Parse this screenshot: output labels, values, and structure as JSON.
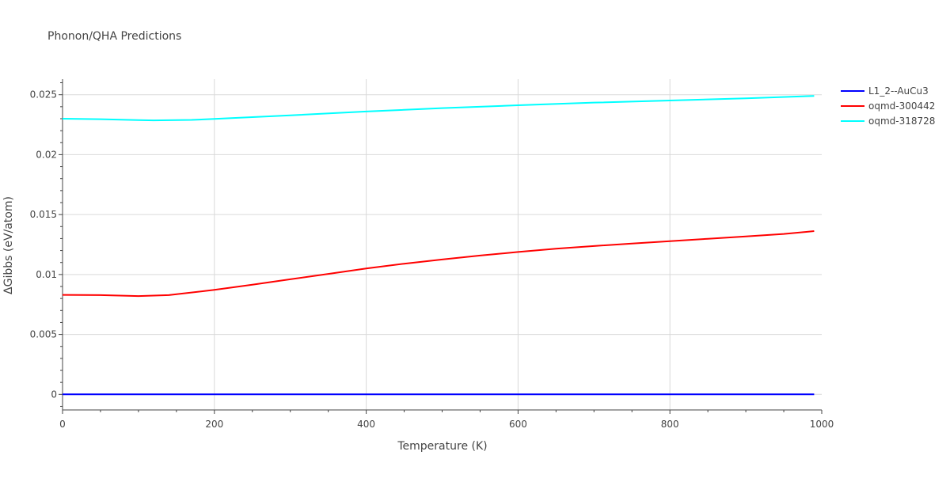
{
  "chart_data": {
    "type": "line",
    "title": "Phonon/QHA Predictions",
    "xlabel": "Temperature (K)",
    "ylabel": "ΔGibbs (eV/atom)",
    "xlim": [
      0,
      1000
    ],
    "ylim": [
      -0.0013,
      0.0263
    ],
    "xticks": [
      0,
      200,
      400,
      600,
      800,
      1000
    ],
    "yticks": [
      0,
      0.005,
      0.01,
      0.015,
      0.02,
      0.025
    ],
    "ytick_labels": [
      "0",
      "0.005",
      "0.01",
      "0.015",
      "0.02",
      "0.025"
    ],
    "grid": true,
    "legend_position": "top-right",
    "series": [
      {
        "name": "L1_2--AuCu3",
        "color": "#0000ff",
        "x": [
          0,
          100,
          200,
          300,
          400,
          500,
          600,
          700,
          800,
          900,
          990
        ],
        "y": [
          0,
          0,
          0,
          0,
          0,
          0,
          0,
          0,
          0,
          0,
          0
        ]
      },
      {
        "name": "oqmd-300442",
        "color": "#ff0000",
        "x": [
          0,
          50,
          100,
          140,
          200,
          250,
          300,
          350,
          400,
          450,
          500,
          550,
          600,
          650,
          700,
          750,
          800,
          850,
          900,
          950,
          990
        ],
        "y": [
          0.0083,
          0.00828,
          0.0082,
          0.00828,
          0.00872,
          0.00915,
          0.0096,
          0.01005,
          0.0105,
          0.0109,
          0.01125,
          0.01158,
          0.01188,
          0.01215,
          0.01238,
          0.01258,
          0.01278,
          0.01298,
          0.01318,
          0.01338,
          0.01362
        ]
      },
      {
        "name": "oqmd-318728",
        "color": "#00ffff",
        "x": [
          0,
          50,
          100,
          120,
          170,
          200,
          300,
          400,
          500,
          600,
          700,
          800,
          900,
          990
        ],
        "y": [
          0.023,
          0.02296,
          0.02288,
          0.02286,
          0.0229,
          0.02298,
          0.02328,
          0.0236,
          0.02388,
          0.02412,
          0.02434,
          0.02452,
          0.0247,
          0.0249
        ]
      }
    ]
  }
}
